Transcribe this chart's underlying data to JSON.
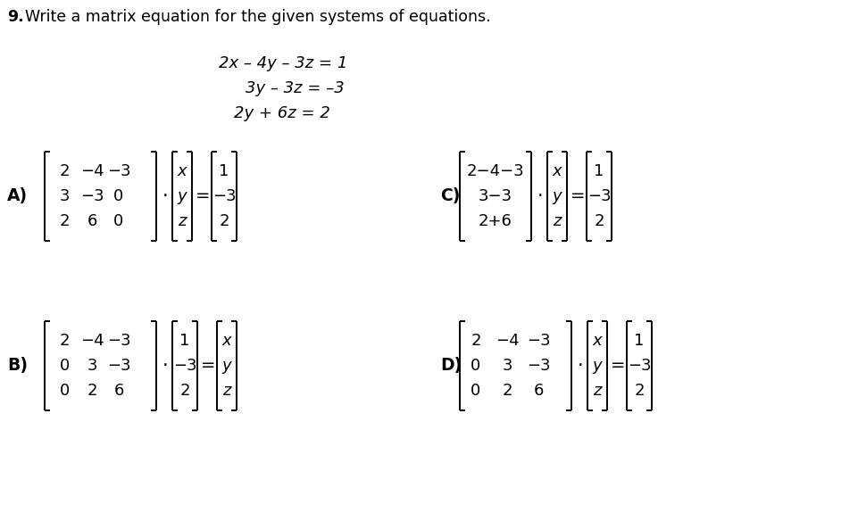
{
  "title_bold": "9.",
  "title_rest": "  Write a matrix equation for the given systems of equations.",
  "equations": [
    "2x – 4y – 3z = 1",
    "3y – 3z = –3",
    "2y + 6z = 2"
  ],
  "A_matrix": [
    [
      "2",
      "−4",
      "−3"
    ],
    [
      "3",
      "−3",
      "0"
    ],
    [
      "2",
      "6",
      "0"
    ]
  ],
  "A_vec": [
    "x",
    "y",
    "z"
  ],
  "A_rhs": [
    "1",
    "−3",
    "2"
  ],
  "B_matrix": [
    [
      "2",
      "−4",
      "−3"
    ],
    [
      "0",
      "3",
      "−3"
    ],
    [
      "0",
      "2",
      "6"
    ]
  ],
  "B_vec": [
    "1",
    "−3",
    "2"
  ],
  "B_rhs": [
    "x",
    "y",
    "z"
  ],
  "C_matrix": [
    [
      "2−4−3",
      "",
      ""
    ],
    [
      "3−3",
      "",
      ""
    ],
    [
      "2+6",
      "",
      ""
    ]
  ],
  "C_vec": [
    "x",
    "y",
    "z"
  ],
  "C_rhs": [
    "1",
    "−3",
    "2"
  ],
  "D_matrix": [
    [
      "2",
      "−4",
      "−3"
    ],
    [
      "0",
      "3",
      "−3"
    ],
    [
      "0",
      "2",
      "6"
    ]
  ],
  "D_vec": [
    "x",
    "y",
    "z"
  ],
  "D_rhs": [
    "1",
    "−3",
    "2"
  ],
  "bg": "#ffffff",
  "fg": "#000000",
  "fs_title": 12.5,
  "fs_eq": 13,
  "fs_mat": 13,
  "fs_label": 13.5
}
